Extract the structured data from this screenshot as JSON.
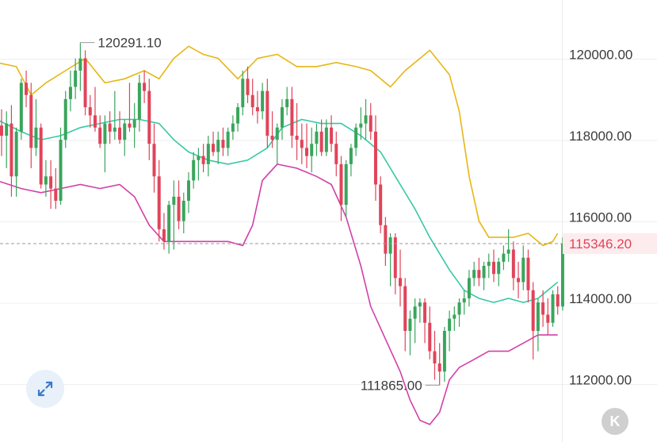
{
  "chart_data": {
    "type": "candlestick",
    "y_axis": {
      "ticks": [
        120000,
        118000,
        116000,
        114000,
        112000
      ],
      "tick_labels": [
        "120000.00",
        "118000.00",
        "116000.00",
        "114000.00",
        "112000.00"
      ],
      "range": [
        110500,
        121500
      ],
      "position": "right",
      "grid": true
    },
    "current_price": {
      "value": 115346.2,
      "label": "115346.20",
      "color": "#e0445a"
    },
    "annotations": [
      {
        "label": "120291.10",
        "value": 120291.1,
        "kind": "high",
        "candle_index": 16
      },
      {
        "label": "111865.00",
        "value": 111865.0,
        "kind": "low",
        "candle_index": 89
      }
    ],
    "colors": {
      "up": "#3aa55c",
      "down": "#e0445a",
      "upper_band": "#e7b614",
      "middle_band": "#35c9a4",
      "lower_band": "#d23fa8"
    },
    "candles": [
      [
        118250,
        118650,
        117500,
        118000
      ],
      [
        118000,
        118600,
        117200,
        118300
      ],
      [
        118300,
        118750,
        116500,
        117000
      ],
      [
        117000,
        118200,
        116500,
        118100
      ],
      [
        118100,
        119400,
        117900,
        119300
      ],
      [
        119300,
        119600,
        118700,
        119000
      ],
      [
        119000,
        119300,
        117200,
        117700
      ],
      [
        117700,
        118900,
        117500,
        118200
      ],
      [
        118200,
        118300,
        116700,
        116800
      ],
      [
        116800,
        117400,
        116500,
        117000
      ],
      [
        117000,
        117400,
        116200,
        116700
      ],
      [
        116700,
        117200,
        116200,
        116400
      ],
      [
        116400,
        118200,
        116300,
        117900
      ],
      [
        117900,
        119100,
        117700,
        118900
      ],
      [
        118900,
        119600,
        118600,
        119200
      ],
      [
        119200,
        119900,
        118900,
        119600
      ],
      [
        119600,
        120291,
        119100,
        119900
      ],
      [
        119900,
        120100,
        118500,
        118700
      ],
      [
        118700,
        119000,
        118200,
        118500
      ],
      [
        118500,
        119200,
        118100,
        118200
      ],
      [
        118200,
        118500,
        117700,
        117800
      ],
      [
        117800,
        118500,
        117100,
        118300
      ],
      [
        118300,
        118600,
        117800,
        118100
      ],
      [
        118100,
        119100,
        117900,
        118200
      ],
      [
        118200,
        118600,
        117800,
        117900
      ],
      [
        117900,
        118400,
        117500,
        118300
      ],
      [
        118300,
        119300,
        118100,
        118200
      ],
      [
        118200,
        118800,
        117700,
        118400
      ],
      [
        118400,
        119500,
        118100,
        119300
      ],
      [
        119300,
        119600,
        118800,
        119100
      ],
      [
        119100,
        119400,
        117400,
        117800
      ],
      [
        117800,
        118300,
        116600,
        117000
      ],
      [
        117000,
        117400,
        115400,
        115700
      ],
      [
        115700,
        116100,
        115200,
        115400
      ],
      [
        115400,
        116400,
        115100,
        116300
      ],
      [
        116300,
        116900,
        115200,
        116500
      ],
      [
        116500,
        116900,
        115700,
        115900
      ],
      [
        115900,
        116600,
        115600,
        116400
      ],
      [
        116400,
        117100,
        116100,
        116900
      ],
      [
        116900,
        117600,
        116700,
        117400
      ],
      [
        117400,
        117700,
        116900,
        117500
      ],
      [
        117500,
        117800,
        117100,
        117300
      ],
      [
        117300,
        118000,
        117000,
        117800
      ],
      [
        117800,
        118100,
        117500,
        117600
      ],
      [
        117600,
        118100,
        117300,
        117900
      ],
      [
        117900,
        118200,
        117500,
        117700
      ],
      [
        117700,
        118200,
        117500,
        118100
      ],
      [
        118100,
        118500,
        117900,
        118300
      ],
      [
        118300,
        118800,
        118100,
        118700
      ],
      [
        118700,
        119600,
        118500,
        119400
      ],
      [
        119400,
        119700,
        118800,
        119000
      ],
      [
        119000,
        119400,
        118500,
        118700
      ],
      [
        118700,
        119100,
        118300,
        118600
      ],
      [
        118600,
        119300,
        118400,
        119100
      ],
      [
        119100,
        119400,
        117700,
        118000
      ],
      [
        118000,
        118600,
        117700,
        117900
      ],
      [
        117900,
        118300,
        117300,
        118200
      ],
      [
        118200,
        118900,
        117900,
        118700
      ],
      [
        118700,
        119200,
        118500,
        118900
      ],
      [
        118900,
        119200,
        117700,
        118000
      ],
      [
        118000,
        118800,
        117400,
        117900
      ],
      [
        117900,
        118300,
        117300,
        117700
      ],
      [
        117700,
        118300,
        117200,
        117500
      ],
      [
        117500,
        118200,
        117100,
        117800
      ],
      [
        117800,
        118300,
        117500,
        118100
      ],
      [
        118100,
        118400,
        117500,
        117600
      ],
      [
        117600,
        118400,
        117500,
        118200
      ],
      [
        118200,
        118500,
        117600,
        117800
      ],
      [
        117800,
        118100,
        117000,
        117300
      ],
      [
        117300,
        117500,
        115900,
        116300
      ],
      [
        116300,
        117400,
        116000,
        117300
      ],
      [
        117300,
        117800,
        117000,
        117700
      ],
      [
        117700,
        118300,
        117500,
        118200
      ],
      [
        118200,
        118700,
        117900,
        118300
      ],
      [
        118300,
        118900,
        117900,
        118500
      ],
      [
        118500,
        118800,
        117900,
        118100
      ],
      [
        118100,
        118500,
        116400,
        116800
      ],
      [
        116800,
        117000,
        115600,
        115800
      ],
      [
        115800,
        116000,
        114800,
        115100
      ],
      [
        115100,
        115600,
        114300,
        115500
      ],
      [
        115500,
        115600,
        114100,
        114500
      ],
      [
        114500,
        115200,
        113800,
        114300
      ],
      [
        114300,
        114500,
        112700,
        113200
      ],
      [
        113200,
        113700,
        112600,
        113500
      ],
      [
        113500,
        114000,
        112900,
        113800
      ],
      [
        113800,
        114000,
        113400,
        113900
      ],
      [
        113900,
        114000,
        112900,
        113400
      ],
      [
        113400,
        113800,
        112500,
        112700
      ],
      [
        112700,
        113200,
        112000,
        112400
      ],
      [
        112400,
        112900,
        111865,
        112200
      ],
      [
        112200,
        113300,
        111950,
        113200
      ],
      [
        113200,
        113700,
        112700,
        113500
      ],
      [
        113500,
        113800,
        113200,
        113600
      ],
      [
        113600,
        114000,
        113300,
        113900
      ],
      [
        113900,
        114200,
        113600,
        114000
      ],
      [
        114000,
        114700,
        113800,
        114500
      ],
      [
        114500,
        114900,
        114300,
        114700
      ],
      [
        114700,
        115000,
        114300,
        114500
      ],
      [
        114500,
        114900,
        114200,
        114800
      ],
      [
        114800,
        115100,
        114500,
        114900
      ],
      [
        114900,
        115200,
        114400,
        114600
      ],
      [
        114600,
        115000,
        114300,
        114900
      ],
      [
        114900,
        115300,
        114700,
        115100
      ],
      [
        115100,
        115700,
        114900,
        115200
      ],
      [
        115200,
        115400,
        114200,
        114500
      ],
      [
        114500,
        114900,
        114000,
        114400
      ],
      [
        114400,
        115300,
        114200,
        115000
      ],
      [
        115000,
        115200,
        113900,
        114200
      ],
      [
        114200,
        114400,
        112500,
        113200
      ],
      [
        113200,
        114000,
        112700,
        113900
      ],
      [
        113900,
        114200,
        113300,
        113600
      ],
      [
        113600,
        114000,
        113100,
        113400
      ],
      [
        113400,
        114200,
        113300,
        114100
      ],
      [
        114100,
        114300,
        113600,
        113800
      ],
      [
        113800,
        115500,
        113700,
        115346.2
      ]
    ],
    "bollinger": {
      "upper": [
        [
          -1,
          119800
        ],
        [
          3,
          119700
        ],
        [
          6,
          119000
        ],
        [
          9,
          119300
        ],
        [
          13,
          119600
        ],
        [
          17,
          119900
        ],
        [
          21,
          119300
        ],
        [
          25,
          119400
        ],
        [
          29,
          119600
        ],
        [
          32,
          119400
        ],
        [
          35,
          119900
        ],
        [
          38,
          120200
        ],
        [
          41,
          120000
        ],
        [
          44,
          119900
        ],
        [
          48,
          119400
        ],
        [
          52,
          119900
        ],
        [
          56,
          120000
        ],
        [
          60,
          119700
        ],
        [
          64,
          119700
        ],
        [
          68,
          119800
        ],
        [
          72,
          119700
        ],
        [
          75,
          119600
        ],
        [
          79,
          119200
        ],
        [
          82,
          119600
        ],
        [
          85,
          119900
        ],
        [
          87,
          120100
        ],
        [
          89,
          119800
        ],
        [
          91,
          119500
        ],
        [
          93,
          118600
        ],
        [
          95,
          117000
        ],
        [
          97,
          115900
        ],
        [
          99,
          115500
        ],
        [
          102,
          115500
        ],
        [
          104,
          115500
        ],
        [
          107,
          115600
        ],
        [
          110,
          115300
        ],
        [
          112,
          115400
        ],
        [
          113,
          115600
        ]
      ],
      "middle": [
        [
          -1,
          118400
        ],
        [
          4,
          118100
        ],
        [
          8,
          117900
        ],
        [
          12,
          118000
        ],
        [
          16,
          118200
        ],
        [
          20,
          118300
        ],
        [
          24,
          118400
        ],
        [
          28,
          118400
        ],
        [
          32,
          118300
        ],
        [
          35,
          117900
        ],
        [
          38,
          117600
        ],
        [
          42,
          117400
        ],
        [
          46,
          117300
        ],
        [
          50,
          117400
        ],
        [
          54,
          117700
        ],
        [
          57,
          118200
        ],
        [
          61,
          118400
        ],
        [
          65,
          118300
        ],
        [
          69,
          118300
        ],
        [
          73,
          118000
        ],
        [
          77,
          117600
        ],
        [
          80,
          117000
        ],
        [
          84,
          116200
        ],
        [
          87,
          115500
        ],
        [
          91,
          114700
        ],
        [
          94,
          114200
        ],
        [
          97,
          114000
        ],
        [
          100,
          113900
        ],
        [
          103,
          114000
        ],
        [
          106,
          113900
        ],
        [
          109,
          114000
        ],
        [
          113,
          114400
        ]
      ],
      "lower": [
        [
          -1,
          116900
        ],
        [
          4,
          116700
        ],
        [
          8,
          116600
        ],
        [
          12,
          116700
        ],
        [
          16,
          116800
        ],
        [
          20,
          116700
        ],
        [
          24,
          116800
        ],
        [
          27,
          116500
        ],
        [
          30,
          115800
        ],
        [
          33,
          115400
        ],
        [
          37,
          115400
        ],
        [
          42,
          115400
        ],
        [
          46,
          115400
        ],
        [
          49,
          115300
        ],
        [
          51,
          115800
        ],
        [
          53,
          116900
        ],
        [
          56,
          117300
        ],
        [
          60,
          117200
        ],
        [
          64,
          117000
        ],
        [
          67,
          116800
        ],
        [
          70,
          116000
        ],
        [
          73,
          114800
        ],
        [
          75,
          113800
        ],
        [
          78,
          113000
        ],
        [
          81,
          112200
        ],
        [
          83,
          111500
        ],
        [
          85,
          111000
        ],
        [
          87,
          110900
        ],
        [
          89,
          111200
        ],
        [
          91,
          112000
        ],
        [
          93,
          112300
        ],
        [
          96,
          112500
        ],
        [
          99,
          112700
        ],
        [
          103,
          112700
        ],
        [
          106,
          112900
        ],
        [
          109,
          113100
        ],
        [
          113,
          113100
        ]
      ]
    }
  },
  "controls": {
    "expand_icon": "expand-arrows-icon",
    "k_button_label": "K"
  }
}
